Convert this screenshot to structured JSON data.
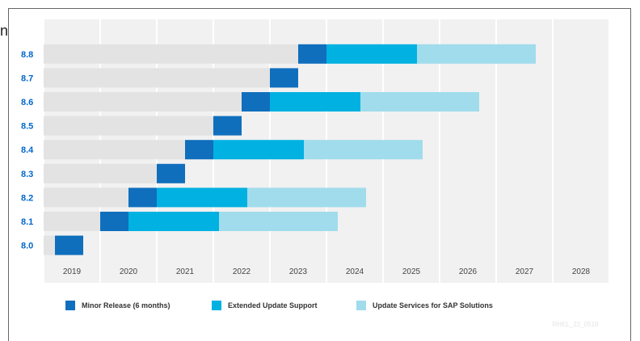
{
  "page": {
    "corner_text": "n"
  },
  "chart_data": {
    "type": "bar",
    "categories": [
      "8.8",
      "8.7",
      "8.6",
      "8.5",
      "8.4",
      "8.3",
      "8.2",
      "8.1",
      "8.0"
    ],
    "xticks": [
      "2019",
      "2020",
      "2021",
      "2022",
      "2023",
      "2024",
      "2025",
      "2026",
      "2027",
      "2028"
    ],
    "xlim": [
      2019,
      2029
    ],
    "series": [
      {
        "name": "Minor Release",
        "legend_suffix": "(6 months)",
        "color": "#0f6fbd",
        "ranges": [
          [
            2023.5,
            2024.0
          ],
          [
            2023.0,
            2023.5
          ],
          [
            2022.5,
            2023.0
          ],
          [
            2022.0,
            2022.5
          ],
          [
            2021.5,
            2022.0
          ],
          [
            2021.0,
            2021.5
          ],
          [
            2020.5,
            2021.0
          ],
          [
            2020.0,
            2020.5
          ],
          [
            2019.2,
            2019.7
          ]
        ]
      },
      {
        "name": "Extended Update Support",
        "color": "#00b1e1",
        "ranges": [
          [
            2024.0,
            2025.6
          ],
          null,
          [
            2023.0,
            2024.6
          ],
          null,
          [
            2022.0,
            2023.6
          ],
          null,
          [
            2021.0,
            2022.6
          ],
          [
            2020.5,
            2022.1
          ],
          null
        ]
      },
      {
        "name": "Update Services for SAP Solutions",
        "color": "#a0dcec",
        "ranges": [
          [
            2025.6,
            2027.7
          ],
          null,
          [
            2024.6,
            2026.7
          ],
          null,
          [
            2023.6,
            2025.7
          ],
          null,
          [
            2022.6,
            2024.7
          ],
          [
            2022.1,
            2024.2
          ],
          null
        ]
      }
    ],
    "grid": true,
    "legend": "bottom",
    "watermark": "RHEL_22_0519"
  }
}
